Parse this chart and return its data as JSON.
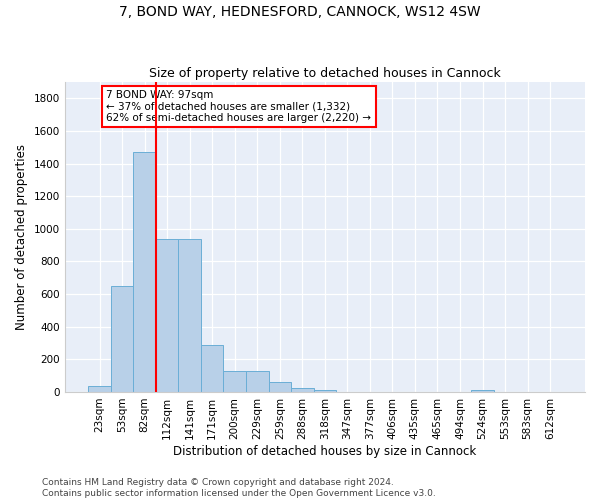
{
  "title": "7, BOND WAY, HEDNESFORD, CANNOCK, WS12 4SW",
  "subtitle": "Size of property relative to detached houses in Cannock",
  "xlabel": "Distribution of detached houses by size in Cannock",
  "ylabel": "Number of detached properties",
  "bar_labels": [
    "23sqm",
    "53sqm",
    "82sqm",
    "112sqm",
    "141sqm",
    "171sqm",
    "200sqm",
    "229sqm",
    "259sqm",
    "288sqm",
    "318sqm",
    "347sqm",
    "377sqm",
    "406sqm",
    "435sqm",
    "465sqm",
    "494sqm",
    "524sqm",
    "553sqm",
    "583sqm",
    "612sqm"
  ],
  "bar_values": [
    38,
    650,
    1470,
    935,
    935,
    290,
    130,
    130,
    63,
    22,
    15,
    0,
    0,
    0,
    0,
    0,
    0,
    15,
    0,
    0,
    0
  ],
  "bar_color": "#b8d0e8",
  "bar_edgecolor": "#6aaed6",
  "vline_color": "red",
  "annotation_line1": "7 BOND WAY: 97sqm",
  "annotation_line2": "← 37% of detached houses are smaller (1,332)",
  "annotation_line3": "62% of semi-detached houses are larger (2,220) →",
  "annotation_box_color": "white",
  "annotation_box_edgecolor": "red",
  "ylim": [
    0,
    1900
  ],
  "yticks": [
    0,
    200,
    400,
    600,
    800,
    1000,
    1200,
    1400,
    1600,
    1800
  ],
  "background_color": "#e8eef8",
  "grid_color": "white",
  "footnote": "Contains HM Land Registry data © Crown copyright and database right 2024.\nContains public sector information licensed under the Open Government Licence v3.0.",
  "title_fontsize": 10,
  "subtitle_fontsize": 9,
  "xlabel_fontsize": 8.5,
  "ylabel_fontsize": 8.5,
  "tick_fontsize": 7.5,
  "annotation_fontsize": 7.5,
  "footnote_fontsize": 6.5
}
